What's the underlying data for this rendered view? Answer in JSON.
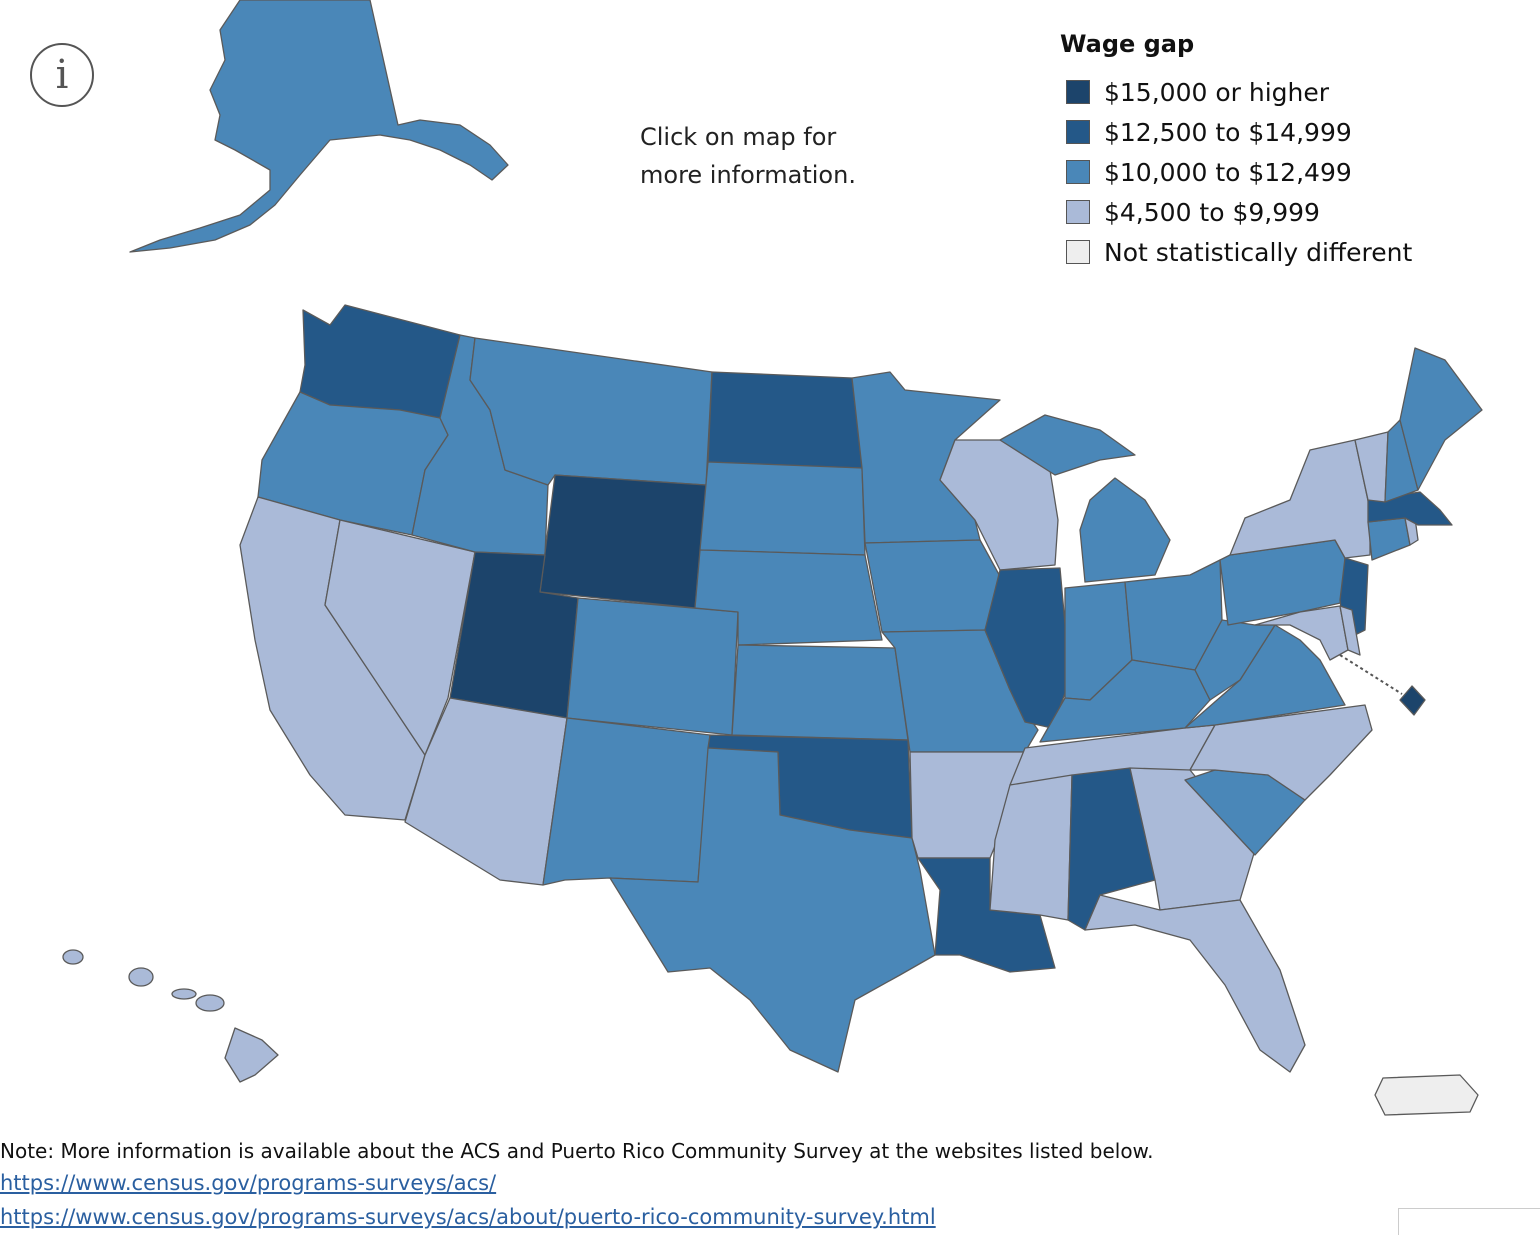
{
  "info_icon": "info-icon",
  "hint": "Click on map for\nmore information.",
  "legend": {
    "title": "Wage gap",
    "items": [
      {
        "label": "$15,000 or higher",
        "color": "#1c446b"
      },
      {
        "label": "$12,500 to $14,999",
        "color": "#245888"
      },
      {
        "label": "$10,000 to $12,499",
        "color": "#4a87b8"
      },
      {
        "label": "$4,500 to $9,999",
        "color": "#aabad8"
      },
      {
        "label": "Not statistically different",
        "color": "#eeeeee"
      }
    ]
  },
  "footer": {
    "note": "Note: More information is available about the ACS and Puerto Rico Community Survey at the websites listed below.",
    "links": [
      "https://www.census.gov/programs-surveys/acs/",
      "https://www.census.gov/programs-surveys/acs/about/puerto-rico-community-survey.html"
    ]
  },
  "regions": [
    {
      "state": "WA",
      "category": 1
    },
    {
      "state": "OR",
      "category": 2
    },
    {
      "state": "CA",
      "category": 3
    },
    {
      "state": "NV",
      "category": 3
    },
    {
      "state": "ID",
      "category": 2
    },
    {
      "state": "MT",
      "category": 2
    },
    {
      "state": "WY",
      "category": 0
    },
    {
      "state": "UT",
      "category": 0
    },
    {
      "state": "AZ",
      "category": 3
    },
    {
      "state": "CO",
      "category": 2
    },
    {
      "state": "NM",
      "category": 2
    },
    {
      "state": "ND",
      "category": 1
    },
    {
      "state": "SD",
      "category": 2
    },
    {
      "state": "NE",
      "category": 2
    },
    {
      "state": "KS",
      "category": 2
    },
    {
      "state": "OK",
      "category": 1
    },
    {
      "state": "TX",
      "category": 2
    },
    {
      "state": "MN",
      "category": 2
    },
    {
      "state": "IA",
      "category": 2
    },
    {
      "state": "MO",
      "category": 2
    },
    {
      "state": "AR",
      "category": 3
    },
    {
      "state": "LA",
      "category": 1
    },
    {
      "state": "WI",
      "category": 3
    },
    {
      "state": "IL",
      "category": 1
    },
    {
      "state": "MI",
      "category": 2
    },
    {
      "state": "IN",
      "category": 2
    },
    {
      "state": "OH",
      "category": 2
    },
    {
      "state": "KY",
      "category": 2
    },
    {
      "state": "TN",
      "category": 3
    },
    {
      "state": "MS",
      "category": 3
    },
    {
      "state": "AL",
      "category": 1
    },
    {
      "state": "GA",
      "category": 3
    },
    {
      "state": "FL",
      "category": 3
    },
    {
      "state": "SC",
      "category": 2
    },
    {
      "state": "NC",
      "category": 3
    },
    {
      "state": "VA",
      "category": 2
    },
    {
      "state": "WV",
      "category": 2
    },
    {
      "state": "PA",
      "category": 2
    },
    {
      "state": "NY",
      "category": 3
    },
    {
      "state": "NJ",
      "category": 1
    },
    {
      "state": "DE",
      "category": 3
    },
    {
      "state": "MD",
      "category": 3
    },
    {
      "state": "DC",
      "category": 0
    },
    {
      "state": "CT",
      "category": 2
    },
    {
      "state": "RI",
      "category": 3
    },
    {
      "state": "MA",
      "category": 1
    },
    {
      "state": "VT",
      "category": 3
    },
    {
      "state": "NH",
      "category": 2
    },
    {
      "state": "ME",
      "category": 2
    },
    {
      "state": "AK",
      "category": 2
    },
    {
      "state": "HI",
      "category": 3
    },
    {
      "state": "PR",
      "category": 4
    }
  ]
}
